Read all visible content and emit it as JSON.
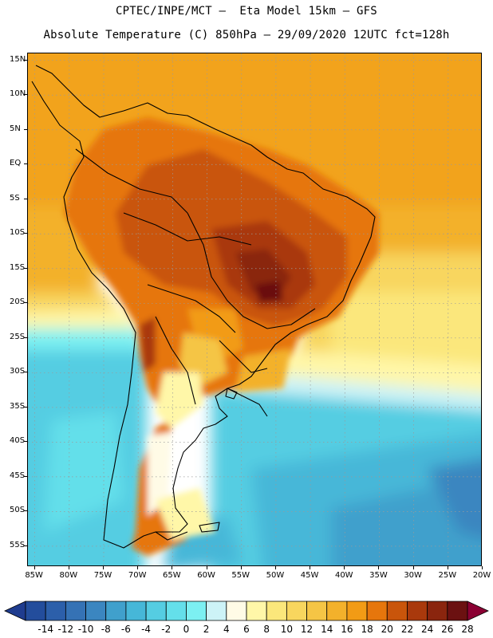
{
  "header": {
    "title_line1": "CPTEC/INPE/MCT –  Eta Model 15km – GFS",
    "title_line2": "Absolute Temperature (C) 850hPa – 29/09/2020 12UTC fct=128h"
  },
  "map": {
    "lat_labels": [
      "15N",
      "10N",
      "5N",
      "EQ",
      "5S",
      "10S",
      "15S",
      "20S",
      "25S",
      "30S",
      "35S",
      "40S",
      "45S",
      "50S",
      "55S"
    ],
    "lon_labels": [
      "85W",
      "80W",
      "75W",
      "70W",
      "65W",
      "60W",
      "55W",
      "50W",
      "45W",
      "40W",
      "35W",
      "30W",
      "25W",
      "20W"
    ],
    "lat_values": [
      15,
      10,
      5,
      0,
      -5,
      -10,
      -15,
      -20,
      -25,
      -30,
      -35,
      -40,
      -45,
      -50,
      -55
    ],
    "lon_values": [
      -85,
      -80,
      -75,
      -70,
      -65,
      -60,
      -55,
      -50,
      -45,
      -40,
      -35,
      -30,
      -25,
      -20
    ],
    "lat_range": [
      -58,
      16
    ],
    "lon_range": [
      -86,
      -20
    ]
  },
  "colorbar": {
    "labels": [
      "-14",
      "-12",
      "-10",
      "-8",
      "-6",
      "-4",
      "-2",
      "0",
      "2",
      "4",
      "6",
      "8",
      "10",
      "12",
      "14",
      "16",
      "18",
      "20",
      "22",
      "24",
      "26",
      "28"
    ],
    "colors": [
      "#1f3c8f",
      "#234d9c",
      "#2c5faa",
      "#3572b5",
      "#3b86c0",
      "#40a0cc",
      "#46b7d8",
      "#55cde2",
      "#64dfea",
      "#7cf0f2",
      "#cdf3f7",
      "#fffbe6",
      "#fff7a8",
      "#fbe77b",
      "#f8d65e",
      "#f5c545",
      "#f3b12b",
      "#f29b15",
      "#e6760c",
      "#c9550b",
      "#a9390c",
      "#8a250e",
      "#6b1111",
      "#8b0033"
    ],
    "unit": "C"
  }
}
